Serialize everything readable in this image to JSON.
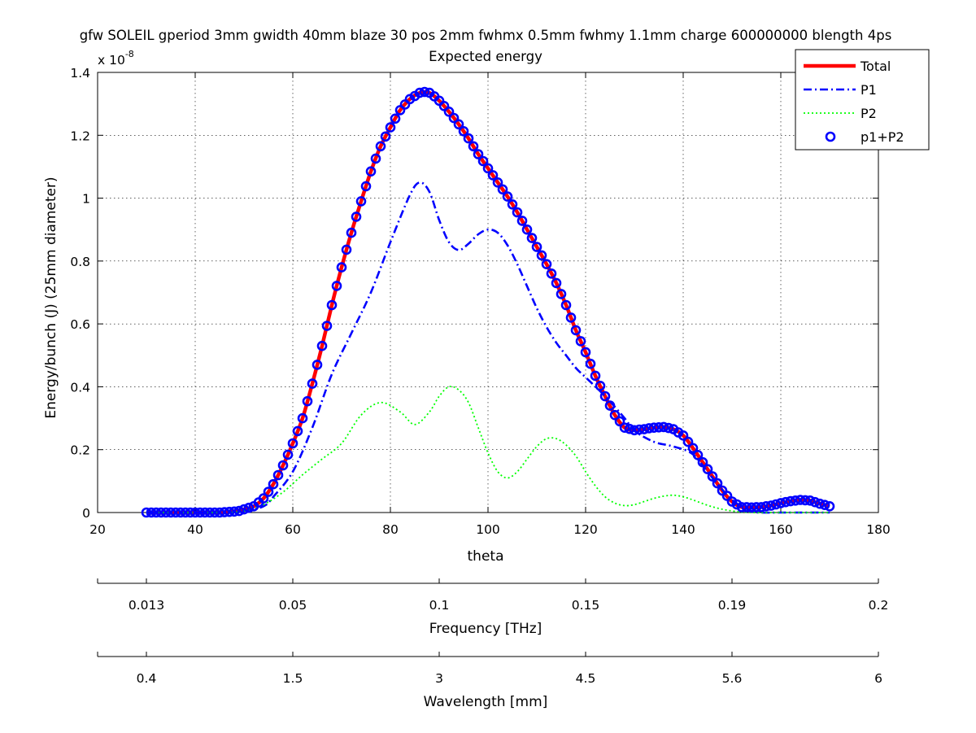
{
  "chart_data": {
    "type": "line",
    "title": "gfw SOLEIL gperiod 3mm gwidth 40mm blaze 30 pos 2mm fwhmx 0.5mm fwhmy 1.1mm charge 600000000 blength 4ps",
    "subtitle": "Expected energy",
    "xlabel": "theta",
    "ylabel": "Energy/bunch (J)  (25mm diameter)",
    "y_exponent_label": "x 10",
    "y_exponent_power": "-8",
    "xlim": [
      20,
      180
    ],
    "ylim": [
      0,
      1.4e-08
    ],
    "xticks": [
      20,
      40,
      60,
      80,
      100,
      120,
      140,
      160,
      180
    ],
    "yticks": [
      0,
      0.2,
      0.4,
      0.6,
      0.8,
      1,
      1.2,
      1.4
    ],
    "grid": true,
    "legend_position": "top-right",
    "secondary_axes": [
      {
        "label": "Frequency [THz]",
        "ticks": [
          {
            "theta": 30,
            "label": "0.013"
          },
          {
            "theta": 60,
            "label": "0.05"
          },
          {
            "theta": 90,
            "label": "0.1"
          },
          {
            "theta": 120,
            "label": "0.15"
          },
          {
            "theta": 150,
            "label": "0.19"
          },
          {
            "theta": 180,
            "label": "0.2"
          }
        ]
      },
      {
        "label": "Wavelength [mm]",
        "ticks": [
          {
            "theta": 30,
            "label": "0.4"
          },
          {
            "theta": 60,
            "label": "1.5"
          },
          {
            "theta": 90,
            "label": "3"
          },
          {
            "theta": 120,
            "label": "4.5"
          },
          {
            "theta": 150,
            "label": "5.6"
          },
          {
            "theta": 180,
            "label": "6"
          }
        ]
      }
    ],
    "series": [
      {
        "name": "Total",
        "style": "solid",
        "color": "#ff0000",
        "x": [
          30,
          45,
          50,
          52,
          54,
          56,
          58,
          60,
          62,
          64,
          66,
          68,
          70,
          72,
          74,
          76,
          78,
          80,
          82,
          84,
          86,
          88,
          90,
          92,
          94,
          96,
          98,
          100,
          102,
          104,
          106,
          108,
          110,
          112,
          114,
          116,
          118,
          120,
          122,
          124,
          126,
          128,
          130,
          132,
          134,
          136,
          138,
          140,
          142,
          144,
          146,
          148,
          150,
          152,
          154,
          156,
          158,
          160,
          162,
          164,
          166,
          168,
          170
        ],
        "y": [
          0,
          0,
          1e-10,
          2e-10,
          4.5e-10,
          9e-10,
          1.5e-09,
          2.2e-09,
          3e-09,
          4.1e-09,
          5.3e-09,
          6.6e-09,
          7.8e-09,
          8.9e-09,
          9.9e-09,
          1.085e-08,
          1.165e-08,
          1.225e-08,
          1.28e-08,
          1.315e-08,
          1.335e-08,
          1.335e-08,
          1.31e-08,
          1.275e-08,
          1.235e-08,
          1.19e-08,
          1.14e-08,
          1.095e-08,
          1.05e-08,
          1.005e-08,
          9.55e-09,
          9e-09,
          8.45e-09,
          7.9e-09,
          7.3e-09,
          6.6e-09,
          5.8e-09,
          5.1e-09,
          4.35e-09,
          3.7e-09,
          3.1e-09,
          2.7e-09,
          2.62e-09,
          2.65e-09,
          2.7e-09,
          2.72e-09,
          2.65e-09,
          2.45e-09,
          2.05e-09,
          1.6e-09,
          1.15e-09,
          7e-10,
          3.5e-10,
          1.7e-10,
          1.6e-10,
          1.7e-10,
          2.2e-10,
          3e-10,
          3.6e-10,
          4e-10,
          3.8e-10,
          2.8e-10,
          2e-10
        ]
      },
      {
        "name": "P1",
        "style": "dashdot",
        "color": "#0000ff",
        "x": [
          30,
          45,
          50,
          54,
          56,
          60,
          64,
          68,
          72,
          76,
          80,
          84,
          86,
          88,
          90,
          92,
          94,
          96,
          98,
          100,
          102,
          104,
          106,
          108,
          110,
          112,
          114,
          116,
          118,
          120,
          124,
          128,
          130,
          134,
          138,
          142,
          146,
          150,
          154,
          156,
          160,
          165,
          170
        ],
        "y": [
          0,
          0,
          5e-11,
          2e-10,
          5e-10,
          1.3e-09,
          2.7e-09,
          4.4e-09,
          5.7e-09,
          7e-09,
          8.6e-09,
          1.01e-08,
          1.05e-08,
          1.02e-08,
          9.3e-09,
          8.6e-09,
          8.35e-09,
          8.55e-09,
          8.85e-09,
          9e-09,
          8.9e-09,
          8.5e-09,
          7.9e-09,
          7.2e-09,
          6.5e-09,
          5.9e-09,
          5.4e-09,
          5e-09,
          4.6e-09,
          4.3e-09,
          3.7e-09,
          3e-09,
          2.6e-09,
          2.25e-09,
          2.1e-09,
          1.85e-09,
          1.1e-09,
          4e-10,
          5e-11,
          0,
          0,
          0,
          0
        ]
      },
      {
        "name": "P2",
        "style": "dotted",
        "color": "#00ff00",
        "x": [
          30,
          45,
          50,
          54,
          58,
          62,
          66,
          70,
          74,
          78,
          82,
          85,
          88,
          90,
          92,
          94,
          96,
          98,
          100,
          102,
          104,
          106,
          108,
          110,
          112,
          114,
          116,
          118,
          120,
          122,
          124,
          126,
          128,
          130,
          132,
          134,
          136,
          138,
          140,
          142,
          146,
          150,
          154,
          160,
          165,
          170
        ],
        "y": [
          0,
          0,
          5e-11,
          2.5e-10,
          6.5e-10,
          1.2e-09,
          1.7e-09,
          2.2e-09,
          3.1e-09,
          3.5e-09,
          3.2e-09,
          2.8e-09,
          3.2e-09,
          3.7e-09,
          4e-09,
          3.9e-09,
          3.5e-09,
          2.7e-09,
          1.9e-09,
          1.3e-09,
          1.1e-09,
          1.3e-09,
          1.7e-09,
          2.1e-09,
          2.35e-09,
          2.35e-09,
          2.15e-09,
          1.8e-09,
          1.3e-09,
          8.5e-10,
          5e-10,
          3e-10,
          2.2e-10,
          2.5e-10,
          3.5e-10,
          4.5e-10,
          5.2e-10,
          5.5e-10,
          5e-10,
          4e-10,
          1.8e-10,
          5e-11,
          0,
          0,
          0,
          0
        ]
      },
      {
        "name": "p1+P2",
        "style": "circles",
        "color": "#0000ff",
        "x": [
          30,
          31,
          32,
          33,
          34,
          35,
          36,
          37,
          38,
          39,
          40,
          41,
          42,
          43,
          44,
          45,
          46,
          47,
          48,
          49,
          50,
          51,
          52,
          53,
          54,
          55,
          56,
          57,
          58,
          59,
          60,
          61,
          62,
          63,
          64,
          65,
          66,
          67,
          68,
          69,
          70,
          71,
          72,
          73,
          74,
          75,
          76,
          77,
          78,
          79,
          80,
          81,
          82,
          83,
          84,
          85,
          86,
          87,
          88,
          89,
          90,
          91,
          92,
          93,
          94,
          95,
          96,
          97,
          98,
          99,
          100,
          101,
          102,
          103,
          104,
          105,
          106,
          107,
          108,
          109,
          110,
          111,
          112,
          113,
          114,
          115,
          116,
          117,
          118,
          119,
          120,
          121,
          122,
          123,
          124,
          125,
          126,
          127,
          128,
          129,
          130,
          131,
          132,
          133,
          134,
          135,
          136,
          137,
          138,
          139,
          140,
          141,
          142,
          143,
          144,
          145,
          146,
          147,
          148,
          149,
          150,
          151,
          152,
          153,
          154,
          155,
          156,
          157,
          158,
          159,
          160,
          161,
          162,
          163,
          164,
          165,
          166,
          167,
          168,
          169,
          170
        ],
        "y": [
          0,
          0,
          0,
          0,
          0,
          0,
          0,
          0,
          0,
          0,
          0,
          0,
          0,
          0,
          0,
          0,
          1e-11,
          2e-11,
          3e-11,
          5e-11,
          1e-10,
          1.5e-10,
          2e-10,
          3.2e-10,
          4.5e-10,
          6.6e-10,
          9e-10,
          1.19e-09,
          1.5e-09,
          1.84e-09,
          2.2e-09,
          2.59e-09,
          3e-09,
          3.54e-09,
          4.1e-09,
          4.7e-09,
          5.3e-09,
          5.94e-09,
          6.6e-09,
          7.21e-09,
          7.8e-09,
          8.36e-09,
          8.9e-09,
          9.41e-09,
          9.9e-09,
          1.038e-08,
          1.085e-08,
          1.126e-08,
          1.165e-08,
          1.196e-08,
          1.225e-08,
          1.253e-08,
          1.28e-08,
          1.298e-08,
          1.315e-08,
          1.325e-08,
          1.335e-08,
          1.338e-08,
          1.335e-08,
          1.324e-08,
          1.31e-08,
          1.293e-08,
          1.275e-08,
          1.255e-08,
          1.235e-08,
          1.213e-08,
          1.19e-08,
          1.165e-08,
          1.14e-08,
          1.118e-08,
          1.095e-08,
          1.073e-08,
          1.05e-08,
          1.028e-08,
          1.005e-08,
          9.8e-09,
          9.55e-09,
          9.28e-09,
          9e-09,
          8.73e-09,
          8.45e-09,
          8.18e-09,
          7.9e-09,
          7.6e-09,
          7.3e-09,
          6.95e-09,
          6.6e-09,
          6.2e-09,
          5.8e-09,
          5.45e-09,
          5.1e-09,
          4.73e-09,
          4.35e-09,
          4.03e-09,
          3.7e-09,
          3.4e-09,
          3.1e-09,
          2.9e-09,
          2.7e-09,
          2.66e-09,
          2.62e-09,
          2.64e-09,
          2.65e-09,
          2.68e-09,
          2.7e-09,
          2.71e-09,
          2.72e-09,
          2.69e-09,
          2.65e-09,
          2.55e-09,
          2.45e-09,
          2.25e-09,
          2.05e-09,
          1.83e-09,
          1.6e-09,
          1.38e-09,
          1.15e-09,
          9.3e-10,
          7e-10,
          5.3e-10,
          3.5e-10,
          2.6e-10,
          1.7e-10,
          1.7e-10,
          1.6e-10,
          1.7e-10,
          1.7e-10,
          2e-10,
          2.2e-10,
          2.6e-10,
          3e-10,
          3.3e-10,
          3.6e-10,
          3.8e-10,
          4e-10,
          3.9e-10,
          3.8e-10,
          3.3e-10,
          2.8e-10,
          2.4e-10,
          2e-10
        ]
      }
    ]
  }
}
